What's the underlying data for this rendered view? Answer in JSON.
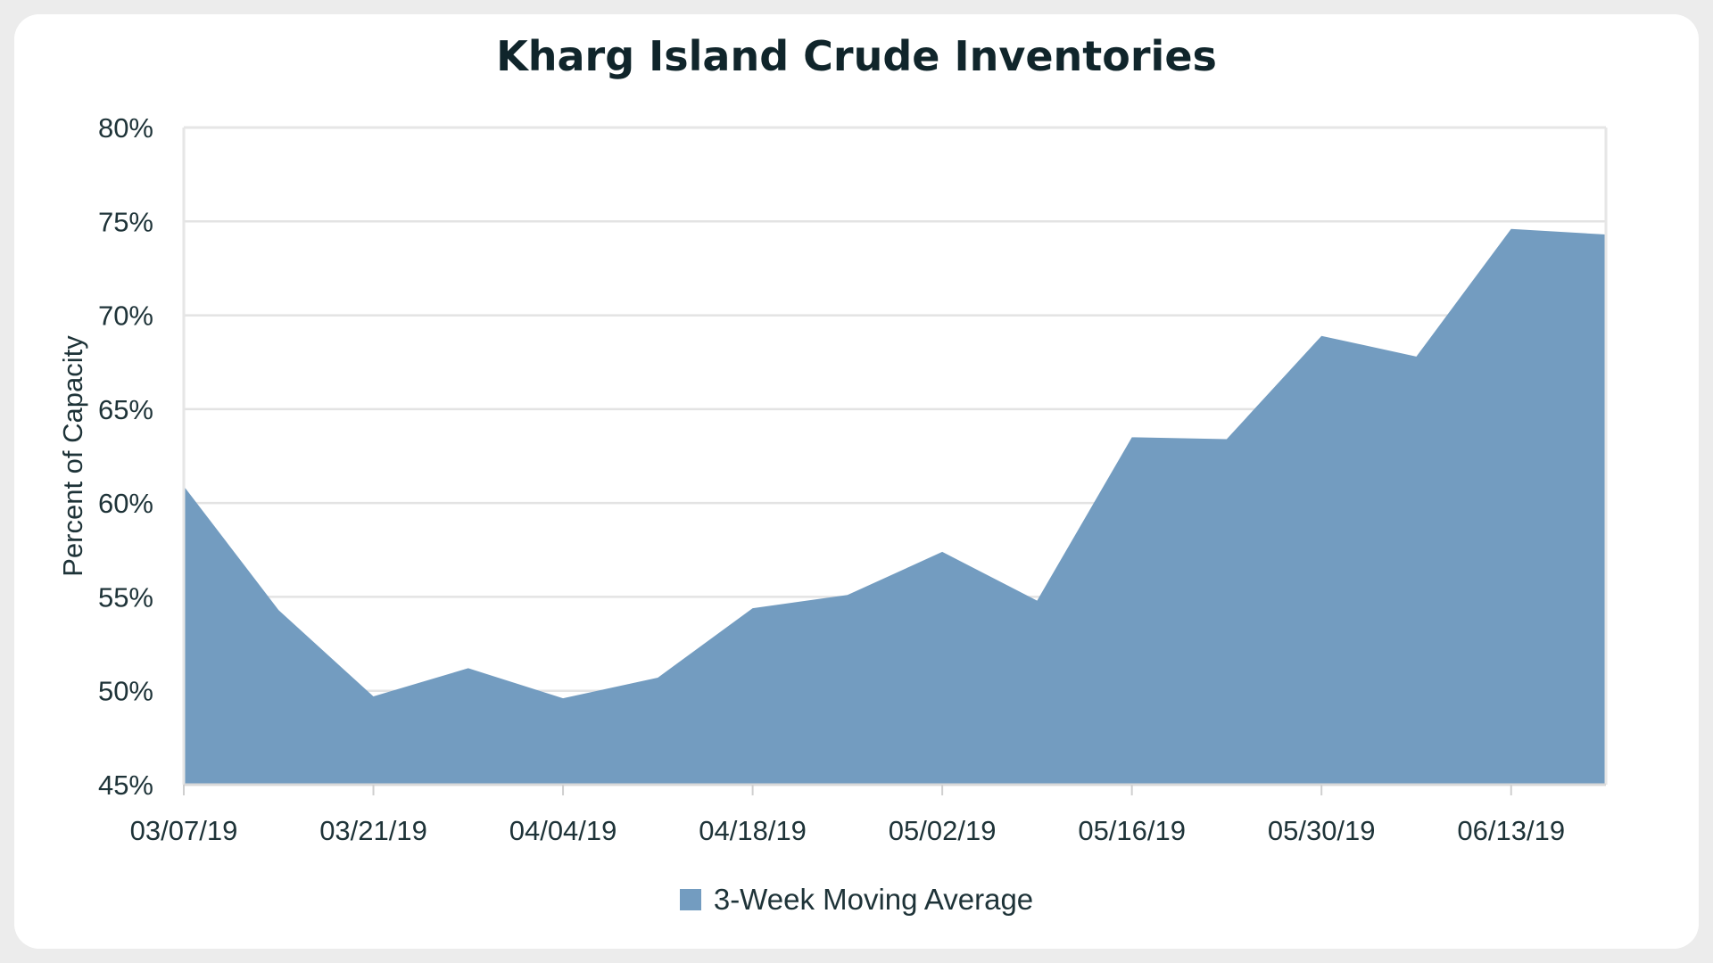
{
  "chart_data": {
    "type": "area",
    "title": "Kharg Island Crude Inventories",
    "xlabel": "",
    "ylabel": "Percent of Capacity",
    "ylim": [
      45,
      80
    ],
    "yticks": [
      "45%",
      "50%",
      "55%",
      "60%",
      "65%",
      "70%",
      "75%",
      "80%"
    ],
    "xtick_labels": [
      "03/07/19",
      "03/21/19",
      "04/04/19",
      "04/18/19",
      "05/02/19",
      "05/16/19",
      "05/30/19",
      "06/13/19"
    ],
    "x": [
      "03/07/19",
      "03/14/19",
      "03/21/19",
      "03/28/19",
      "04/04/19",
      "04/11/19",
      "04/18/19",
      "04/25/19",
      "05/02/19",
      "05/09/19",
      "05/16/19",
      "05/23/19",
      "05/30/19",
      "06/06/19",
      "06/13/19",
      "06/20/19"
    ],
    "series": [
      {
        "name": "3-Week Moving Average",
        "color": "#739cc0",
        "values": [
          60.9,
          54.3,
          49.7,
          51.2,
          49.6,
          50.7,
          54.4,
          55.1,
          57.4,
          54.8,
          63.5,
          63.4,
          68.9,
          67.8,
          74.6,
          74.3
        ]
      }
    ],
    "grid": true,
    "legend_position": "bottom-center"
  }
}
